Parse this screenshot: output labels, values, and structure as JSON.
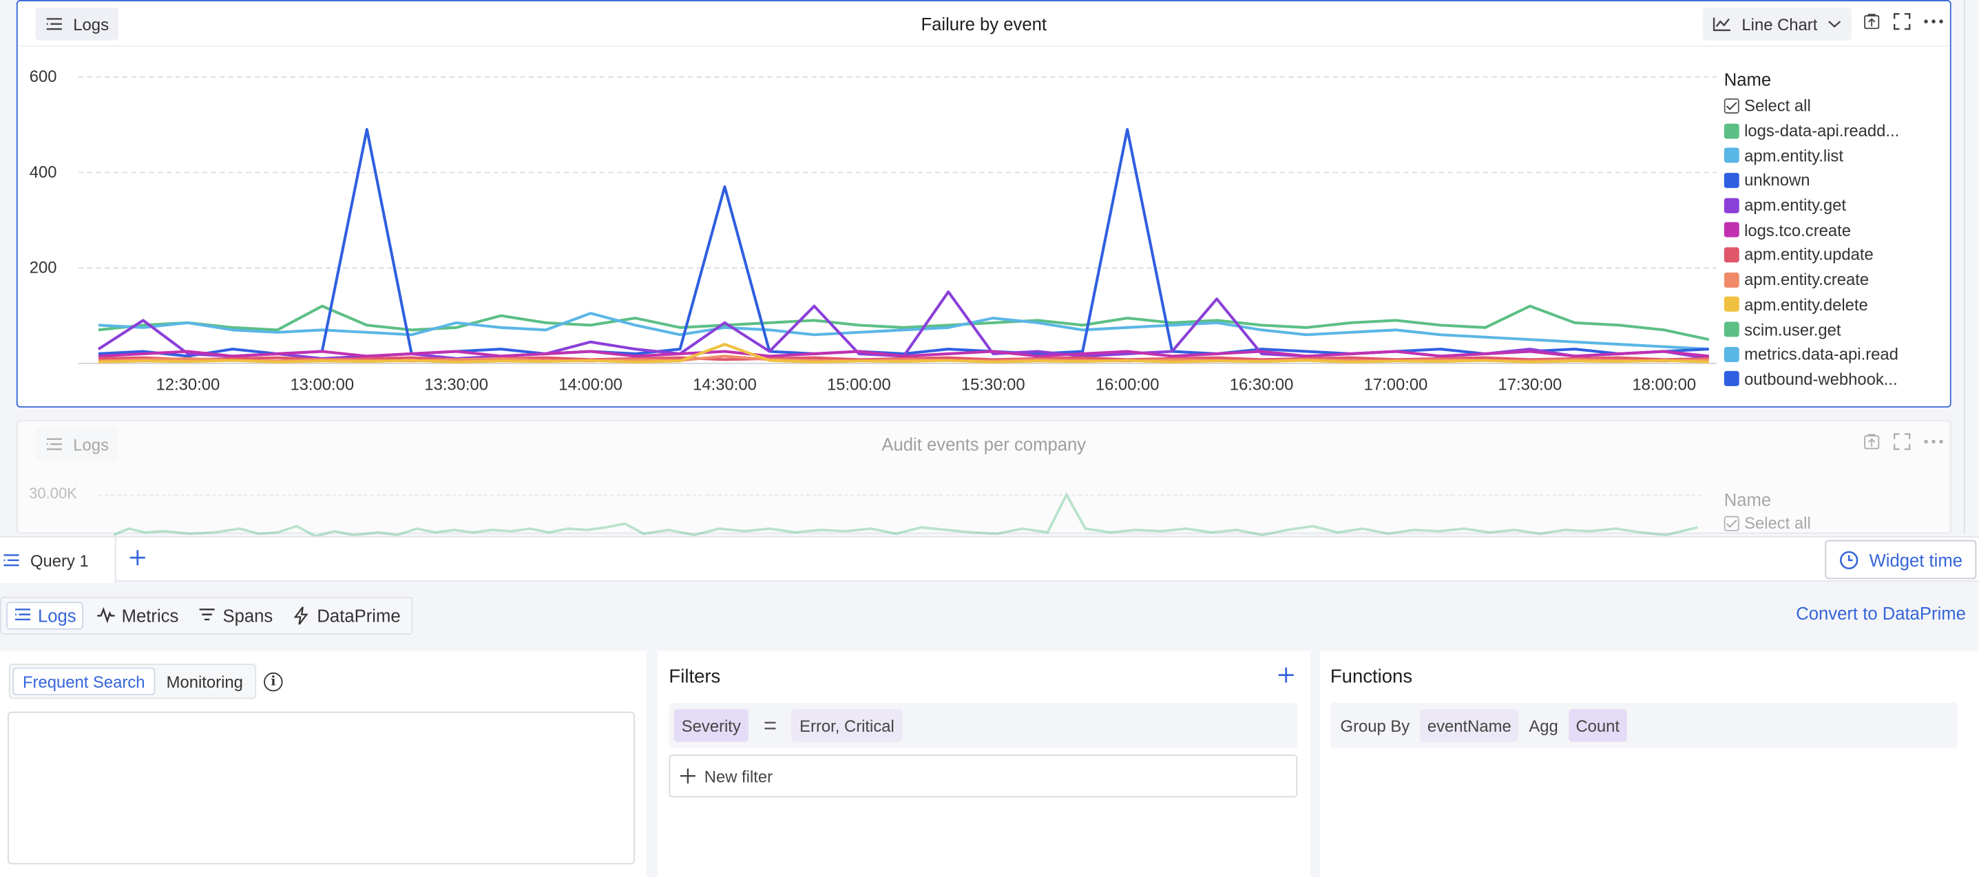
{
  "widget1": {
    "source_chip": "Logs",
    "title": "Failure by event",
    "chart_type_label": "Line Chart",
    "legend_header": "Name",
    "select_all": "Select all",
    "legend": [
      {
        "name": "logs-data-api.readd...",
        "color": "#5cbf85"
      },
      {
        "name": "apm.entity.list",
        "color": "#5ab6e6"
      },
      {
        "name": "unknown",
        "color": "#2f5fe0"
      },
      {
        "name": "apm.entity.get",
        "color": "#8a3fd9"
      },
      {
        "name": "logs.tco.create",
        "color": "#c030b0"
      },
      {
        "name": "apm.entity.update",
        "color": "#e0566a"
      },
      {
        "name": "apm.entity.create",
        "color": "#f08a68"
      },
      {
        "name": "apm.entity.delete",
        "color": "#f0c040"
      },
      {
        "name": "scim.user.get",
        "color": "#5cbf85"
      },
      {
        "name": "metrics.data-api.read",
        "color": "#5ab6e6"
      },
      {
        "name": "outbound-webhook...",
        "color": "#2f5fe0"
      }
    ]
  },
  "chart_data": {
    "type": "line",
    "x": [
      "12:10",
      "12:20",
      "12:30",
      "12:40",
      "12:50",
      "13:00",
      "13:10",
      "13:20",
      "13:30",
      "13:40",
      "13:50",
      "14:00",
      "14:10",
      "14:20",
      "14:30",
      "14:40",
      "14:50",
      "15:00",
      "15:10",
      "15:20",
      "15:30",
      "15:40",
      "15:50",
      "16:00",
      "16:10",
      "16:20",
      "16:30",
      "16:40",
      "16:50",
      "17:00",
      "17:10",
      "17:20",
      "17:30",
      "17:40",
      "17:50",
      "18:00",
      "18:10"
    ],
    "xticks": [
      "12:30:00",
      "13:00:00",
      "13:30:00",
      "14:00:00",
      "14:30:00",
      "15:00:00",
      "15:30:00",
      "16:00:00",
      "16:30:00",
      "17:00:00",
      "17:30:00",
      "18:00:00"
    ],
    "yticks": [
      "200",
      "400",
      "600"
    ],
    "ylim": [
      0,
      600
    ],
    "grid": true,
    "legend_placement": "right",
    "series": [
      {
        "name": "logs-data-api.readd...",
        "color": "#5cbf85",
        "values": [
          70,
          80,
          85,
          75,
          70,
          120,
          80,
          70,
          75,
          100,
          85,
          80,
          95,
          75,
          80,
          85,
          90,
          80,
          75,
          80,
          85,
          90,
          80,
          95,
          85,
          90,
          80,
          75,
          85,
          90,
          80,
          75,
          120,
          85,
          80,
          70,
          50
        ]
      },
      {
        "name": "apm.entity.list",
        "color": "#5ab6e6",
        "values": [
          80,
          75,
          85,
          70,
          65,
          70,
          65,
          60,
          85,
          75,
          70,
          105,
          80,
          60,
          75,
          70,
          60,
          65,
          70,
          75,
          95,
          85,
          70,
          75,
          80,
          85,
          70,
          60,
          65,
          70,
          60,
          55,
          50,
          45,
          40,
          35,
          30
        ]
      },
      {
        "name": "unknown",
        "color": "#2f5fe0",
        "values": [
          20,
          25,
          15,
          30,
          20,
          25,
          490,
          20,
          25,
          30,
          20,
          25,
          20,
          30,
          370,
          25,
          20,
          25,
          20,
          30,
          25,
          20,
          25,
          490,
          25,
          20,
          30,
          25,
          20,
          25,
          30,
          20,
          25,
          30,
          20,
          25,
          30
        ]
      },
      {
        "name": "apm.entity.get",
        "color": "#8a3fd9",
        "values": [
          30,
          90,
          20,
          15,
          20,
          10,
          15,
          20,
          10,
          15,
          20,
          45,
          30,
          20,
          85,
          25,
          120,
          20,
          15,
          150,
          20,
          25,
          15,
          20,
          25,
          135,
          20,
          15,
          20,
          25,
          15,
          20,
          30,
          15,
          20,
          25,
          10
        ]
      },
      {
        "name": "logs.tco.create",
        "color": "#c030b0",
        "values": [
          15,
          20,
          25,
          15,
          20,
          25,
          15,
          20,
          25,
          15,
          20,
          25,
          15,
          20,
          25,
          15,
          20,
          25,
          15,
          20,
          25,
          15,
          20,
          25,
          15,
          20,
          25,
          15,
          20,
          25,
          15,
          20,
          25,
          15,
          20,
          25,
          15
        ]
      },
      {
        "name": "apm.entity.update",
        "color": "#e0566a",
        "values": [
          10,
          12,
          8,
          10,
          12,
          8,
          10,
          12,
          8,
          10,
          12,
          8,
          10,
          12,
          8,
          10,
          12,
          8,
          10,
          12,
          8,
          10,
          12,
          8,
          10,
          12,
          8,
          10,
          12,
          8,
          10,
          12,
          8,
          10,
          12,
          8,
          10
        ]
      },
      {
        "name": "apm.entity.create",
        "color": "#f08a68",
        "values": [
          5,
          8,
          10,
          6,
          5,
          8,
          6,
          5,
          8,
          10,
          6,
          5,
          8,
          6,
          15,
          8,
          6,
          5,
          8,
          6,
          5,
          8,
          6,
          5,
          8,
          6,
          5,
          8,
          6,
          5,
          8,
          6,
          5,
          8,
          6,
          5,
          8
        ]
      },
      {
        "name": "apm.entity.delete",
        "color": "#f0c040",
        "values": [
          3,
          5,
          4,
          6,
          3,
          5,
          4,
          6,
          3,
          5,
          4,
          6,
          3,
          5,
          40,
          6,
          3,
          5,
          4,
          6,
          3,
          5,
          4,
          6,
          3,
          5,
          4,
          6,
          3,
          5,
          4,
          6,
          3,
          5,
          4,
          6,
          3
        ]
      }
    ]
  },
  "widget2": {
    "source_chip": "Logs",
    "title": "Audit events per company",
    "ytick": "30.00K",
    "legend_header": "Name",
    "select_all": "Select all"
  },
  "tabs": {
    "query_tab": "Query 1",
    "widget_time": "Widget time"
  },
  "query_types": [
    {
      "label": "Logs",
      "icon": "logs-icon"
    },
    {
      "label": "Metrics",
      "icon": "metrics-icon"
    },
    {
      "label": "Spans",
      "icon": "spans-icon"
    },
    {
      "label": "DataPrime",
      "icon": "bolt-icon"
    }
  ],
  "convert_label": "Convert to DataPrime",
  "search": {
    "seg_frequent": "Frequent Search",
    "seg_monitoring": "Monitoring"
  },
  "filters": {
    "title": "Filters",
    "field": "Severity",
    "value": "Error, Critical",
    "new_filter": "New filter"
  },
  "functions": {
    "title": "Functions",
    "group_by_label": "Group By",
    "group_by_value": "eventName",
    "agg_label": "Agg",
    "agg_value": "Count"
  }
}
